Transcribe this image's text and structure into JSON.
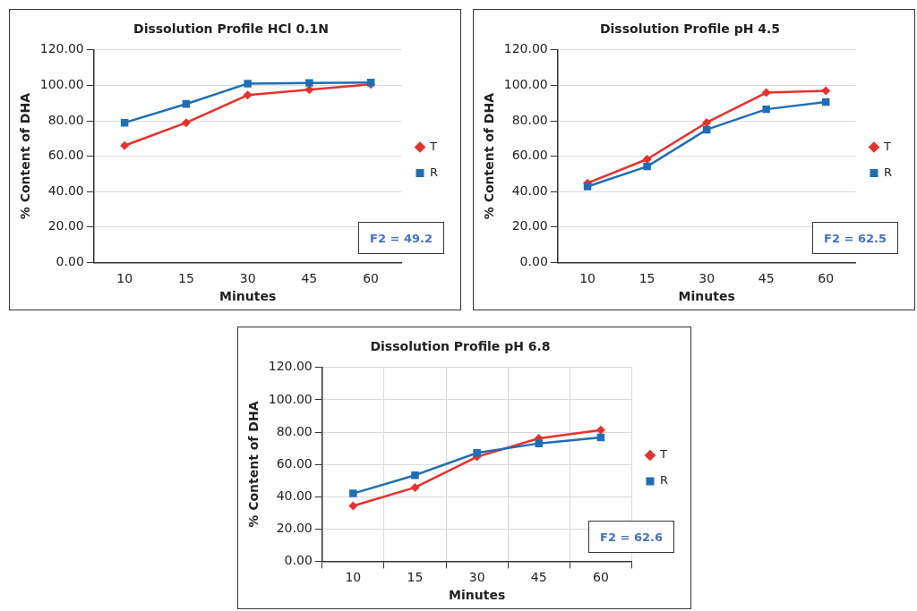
{
  "chart_data": [
    {
      "type": "line",
      "title": "Dissolution Profile HCl 0.1N",
      "xlabel": "Minutes",
      "ylabel": "% Content of DHA",
      "categories": [
        "10",
        "15",
        "30",
        "45",
        "60"
      ],
      "series": [
        {
          "name": "T",
          "color": "#e8302c",
          "marker": "diamond",
          "values": [
            66.0,
            78.9,
            94.5,
            97.6,
            100.6
          ]
        },
        {
          "name": "R",
          "color": "#1f6eb5",
          "marker": "square",
          "values": [
            78.9,
            89.5,
            101.0,
            101.4,
            101.6
          ]
        }
      ],
      "ylim": [
        0,
        120
      ],
      "yticks": [
        {
          "value": 0,
          "label": "0.00"
        },
        {
          "value": 20,
          "label": "20.00"
        },
        {
          "value": 40,
          "label": "40.00"
        },
        {
          "value": 60,
          "label": "60.00"
        },
        {
          "value": 80,
          "label": "80.00"
        },
        {
          "value": 100,
          "label": "100.00"
        },
        {
          "value": 120,
          "label": "120.00"
        }
      ],
      "grid": "y",
      "legend": "right",
      "line_style": "solid",
      "annotations": [
        "F2 = 49.2"
      ]
    },
    {
      "type": "line",
      "title": "Dissolution Profile pH 4.5",
      "xlabel": "Minutes",
      "ylabel": "% Content of DHA",
      "categories": [
        "10",
        "15",
        "30",
        "45",
        "60"
      ],
      "series": [
        {
          "name": "T",
          "color": "#e8302c",
          "marker": "diamond",
          "values": [
            44.8,
            58.3,
            79.0,
            95.9,
            96.9
          ]
        },
        {
          "name": "R",
          "color": "#1f6eb5",
          "marker": "square",
          "values": [
            42.9,
            54.2,
            75.0,
            86.5,
            90.6
          ]
        }
      ],
      "ylim": [
        0,
        120
      ],
      "yticks": [
        {
          "value": 0,
          "label": "0.00"
        },
        {
          "value": 20,
          "label": "20.00"
        },
        {
          "value": 40,
          "label": "40.00"
        },
        {
          "value": 60,
          "label": "60.00"
        },
        {
          "value": 80,
          "label": "80.00"
        },
        {
          "value": 100,
          "label": "100.00"
        },
        {
          "value": 120,
          "label": "120.00"
        }
      ],
      "grid": "y",
      "legend": "right",
      "line_style": "solid",
      "annotations": [
        "F2 = 62.5"
      ]
    },
    {
      "type": "line",
      "title": "Dissolution Profile pH 6.8",
      "xlabel": "Minutes",
      "ylabel": "% Content of DHA",
      "categories": [
        "10",
        "15",
        "30",
        "45",
        "60"
      ],
      "series": [
        {
          "name": "T",
          "color": "#e8302c",
          "marker": "diamond",
          "values": [
            34.3,
            45.7,
            64.7,
            76.1,
            81.2
          ]
        },
        {
          "name": "R",
          "color": "#1f6eb5",
          "marker": "square",
          "values": [
            42.0,
            53.3,
            67.1,
            73.0,
            76.7
          ]
        }
      ],
      "ylim": [
        0,
        120
      ],
      "yticks": [
        {
          "value": 0,
          "label": "0.00"
        },
        {
          "value": 20,
          "label": "20.00"
        },
        {
          "value": 40,
          "label": "40.00"
        },
        {
          "value": 60,
          "label": "60.00"
        },
        {
          "value": 80,
          "label": "80.00"
        },
        {
          "value": 100,
          "label": "100.00"
        },
        {
          "value": 120,
          "label": "120.00"
        }
      ],
      "grid": true,
      "legend": "right",
      "line_style": "solid",
      "annotations": [
        "F2 = 62.6"
      ]
    }
  ]
}
